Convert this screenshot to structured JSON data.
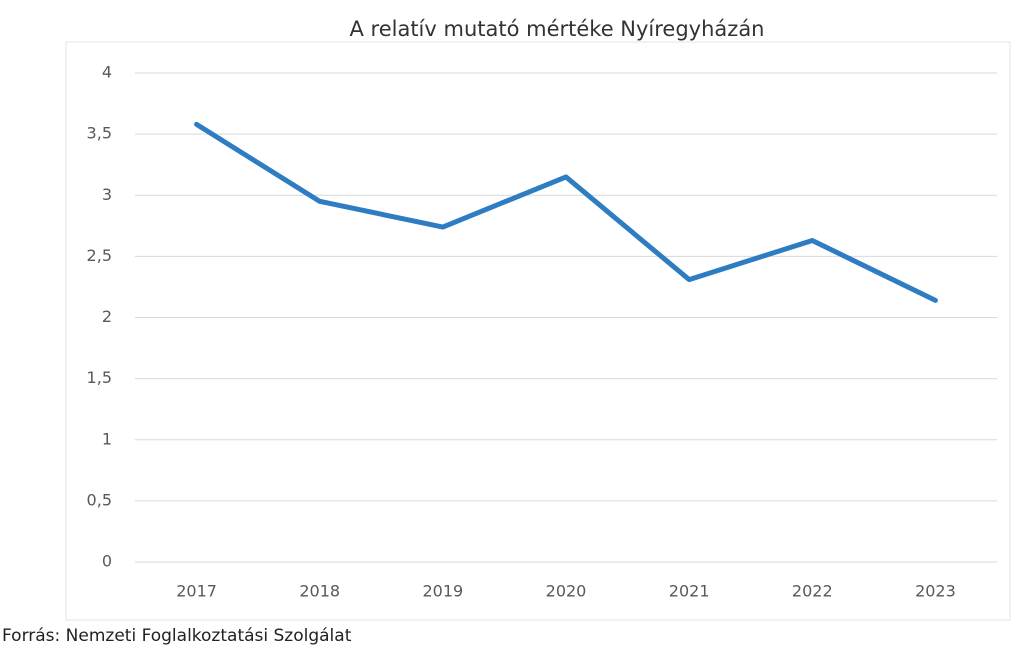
{
  "chart_data": {
    "type": "line",
    "title": "A relatív mutató mértéke Nyíregyházán",
    "source": "Forrás: Nemzeti Foglalkoztatási Szolgálat",
    "categories": [
      "2017",
      "2018",
      "2019",
      "2020",
      "2021",
      "2022",
      "2023"
    ],
    "series": [
      {
        "color": "#2e7dc2",
        "values": [
          3.58,
          2.95,
          2.74,
          3.15,
          2.31,
          2.63,
          2.14
        ]
      }
    ],
    "ylim": [
      0,
      4
    ],
    "yticks": [
      0,
      {
        "value": 0.5,
        "label": "0,5"
      },
      1,
      {
        "value": 1.5,
        "label": "1,5"
      },
      2,
      {
        "value": 2.5,
        "label": "2,5"
      },
      3,
      {
        "value": 3.5,
        "label": "3,5"
      },
      4
    ],
    "grid": true
  }
}
